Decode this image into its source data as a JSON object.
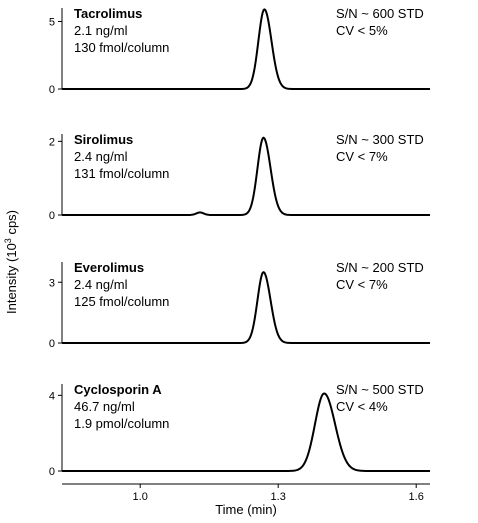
{
  "chart_data": {
    "type": "line",
    "xlabel": "Time (min)",
    "ylabel_prefix": "Intensity (10",
    "ylabel_sup": "3",
    "ylabel_suffix": " cps)",
    "xlim": [
      0.83,
      1.63
    ],
    "xticks": [
      1.0,
      1.3,
      1.6
    ],
    "xtick_labels": [
      "1.0",
      "1.3",
      "1.6"
    ],
    "panels": [
      {
        "name": "Tacrolimus",
        "concentration": "2.1 ng/ml",
        "amount": "130 fmol/column",
        "sn": "S/N ~ 600 STD",
        "cv": "CV < 5%",
        "ylim": [
          0,
          6
        ],
        "yticks": [
          0,
          5
        ],
        "ytick_labels": [
          "0",
          "5"
        ],
        "peak_center": 1.27,
        "peak_height": 5.9,
        "peak_width": 0.013,
        "minor_bumps": []
      },
      {
        "name": "Sirolimus",
        "concentration": "2.4 ng/ml",
        "amount": "131 fmol/column",
        "sn": "S/N ~ 300 STD",
        "cv": "CV < 7%",
        "ylim": [
          0,
          2.2
        ],
        "yticks": [
          0,
          2
        ],
        "ytick_labels": [
          "0",
          "2"
        ],
        "peak_center": 1.268,
        "peak_height": 2.1,
        "peak_width": 0.013,
        "minor_bumps": [
          {
            "x": 1.13,
            "h": 0.07,
            "w": 0.008
          }
        ]
      },
      {
        "name": "Everolimus",
        "concentration": "2.4 ng/ml",
        "amount": "125 fmol/column",
        "sn": "S/N ~ 200 STD",
        "cv": "CV < 7%",
        "ylim": [
          0,
          4
        ],
        "yticks": [
          0,
          3
        ],
        "ytick_labels": [
          "0",
          "3"
        ],
        "peak_center": 1.268,
        "peak_height": 3.5,
        "peak_width": 0.013,
        "minor_bumps": []
      },
      {
        "name": "Cyclosporin A",
        "concentration": "46.7 ng/ml",
        "amount": "1.9 pmol/column",
        "sn": "S/N ~ 500 STD",
        "cv": "CV < 4%",
        "ylim": [
          0,
          4.6
        ],
        "yticks": [
          0,
          4
        ],
        "ytick_labels": [
          "0",
          "4"
        ],
        "peak_center": 1.4,
        "peak_height": 4.1,
        "peak_width": 0.02,
        "minor_bumps": []
      }
    ]
  }
}
